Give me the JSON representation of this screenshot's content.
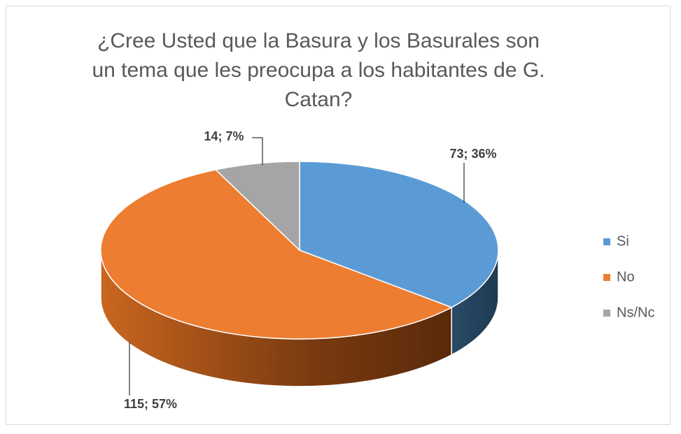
{
  "chart_data": {
    "type": "pie",
    "title": "¿Cree Usted que la Basura y los Basurales son un tema que les preocupa a los habitantes de G. Catan?",
    "categories": [
      "Si",
      "No",
      "Ns/Nc"
    ],
    "values": [
      73,
      115,
      14
    ],
    "value_labels": [
      "73; 36%",
      "115; 57%",
      "14; 7%"
    ],
    "colors": [
      "#5b9bd5",
      "#ed7d31",
      "#a5a5a5"
    ],
    "legend": "right"
  }
}
